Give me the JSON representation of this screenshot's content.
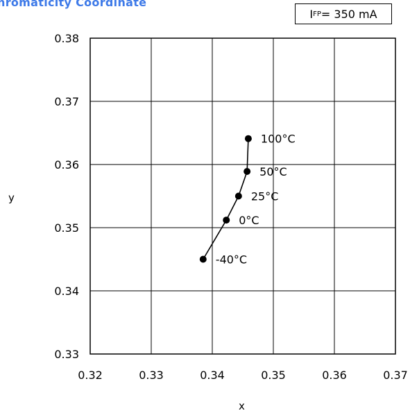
{
  "title": "hromaticity Coordinate",
  "condition": {
    "main": "I",
    "sub": "FP",
    "rest": " = 350 mA"
  },
  "chart_data": {
    "type": "line",
    "title": "hromaticity Coordinate",
    "xlabel": "x",
    "ylabel": "y",
    "xlim": [
      0.32,
      0.37
    ],
    "ylim": [
      0.33,
      0.38
    ],
    "xticks": [
      "0.32",
      "0.33",
      "0.34",
      "0.35",
      "0.36",
      "0.37"
    ],
    "yticks": [
      "0.38",
      "0.37",
      "0.36",
      "0.35",
      "0.34",
      "0.33"
    ],
    "grid": true,
    "series": [
      {
        "points": [
          {
            "label": "-40°C",
            "x": 0.3385,
            "y": 0.345
          },
          {
            "label": "0°C",
            "x": 0.3423,
            "y": 0.3512
          },
          {
            "label": "25°C",
            "x": 0.3443,
            "y": 0.355
          },
          {
            "label": "50°C",
            "x": 0.3457,
            "y": 0.3589
          },
          {
            "label": "100°C",
            "x": 0.3459,
            "y": 0.3641
          }
        ]
      }
    ]
  }
}
